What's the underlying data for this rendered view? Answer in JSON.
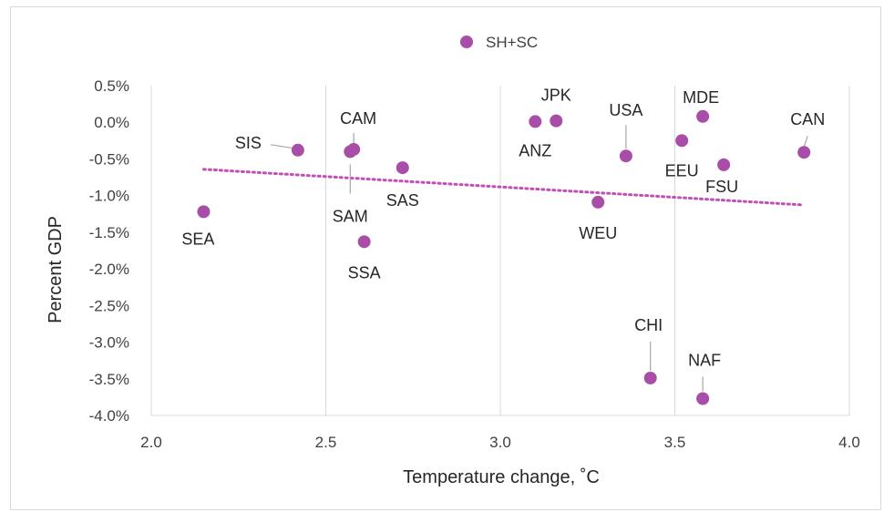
{
  "chart_data": {
    "type": "scatter",
    "title": "",
    "xlabel": "Temperature change, ˚C",
    "ylabel": "Percent GDP",
    "xlim": [
      2.0,
      4.0
    ],
    "ylim": [
      -4.0,
      0.5
    ],
    "x_ticks": [
      2.0,
      2.5,
      3.0,
      3.5,
      4.0
    ],
    "x_tick_labels": [
      "2.0",
      "2.5",
      "3.0",
      "3.5",
      "4.0"
    ],
    "y_ticks": [
      0.5,
      0.0,
      -0.5,
      -1.0,
      -1.5,
      -2.0,
      -2.5,
      -3.0,
      -3.5,
      -4.0
    ],
    "y_tick_labels": [
      "0.5%",
      "0.0%",
      "-0.5%",
      "-1.0%",
      "-1.5%",
      "-2.0%",
      "-2.5%",
      "-3.0%",
      "-3.5%",
      "-4.0%"
    ],
    "grid": "vertical",
    "legend_position": "top-center",
    "series": [
      {
        "name": "SH+SC",
        "color": "#a84ea8",
        "trendline": "linear",
        "points": [
          {
            "label": "SEA",
            "x": 2.15,
            "y": -1.22
          },
          {
            "label": "SIS",
            "x": 2.42,
            "y": -0.38
          },
          {
            "label": "SAM",
            "x": 2.57,
            "y": -0.4
          },
          {
            "label": "CAM",
            "x": 2.58,
            "y": -0.37
          },
          {
            "label": "SSA",
            "x": 2.61,
            "y": -1.63
          },
          {
            "label": "SAS",
            "x": 2.72,
            "y": -0.62
          },
          {
            "label": "ANZ",
            "x": 3.1,
            "y": 0.01
          },
          {
            "label": "JPK",
            "x": 3.16,
            "y": 0.02
          },
          {
            "label": "WEU",
            "x": 3.28,
            "y": -1.09
          },
          {
            "label": "USA",
            "x": 3.36,
            "y": -0.46
          },
          {
            "label": "CHI",
            "x": 3.43,
            "y": -3.49
          },
          {
            "label": "EEU",
            "x": 3.52,
            "y": -0.25
          },
          {
            "label": "NAF",
            "x": 3.58,
            "y": -3.77
          },
          {
            "label": "MDE",
            "x": 3.58,
            "y": 0.08
          },
          {
            "label": "FSU",
            "x": 3.64,
            "y": -0.58
          },
          {
            "label": "CAN",
            "x": 3.87,
            "y": -0.41
          }
        ]
      }
    ]
  }
}
